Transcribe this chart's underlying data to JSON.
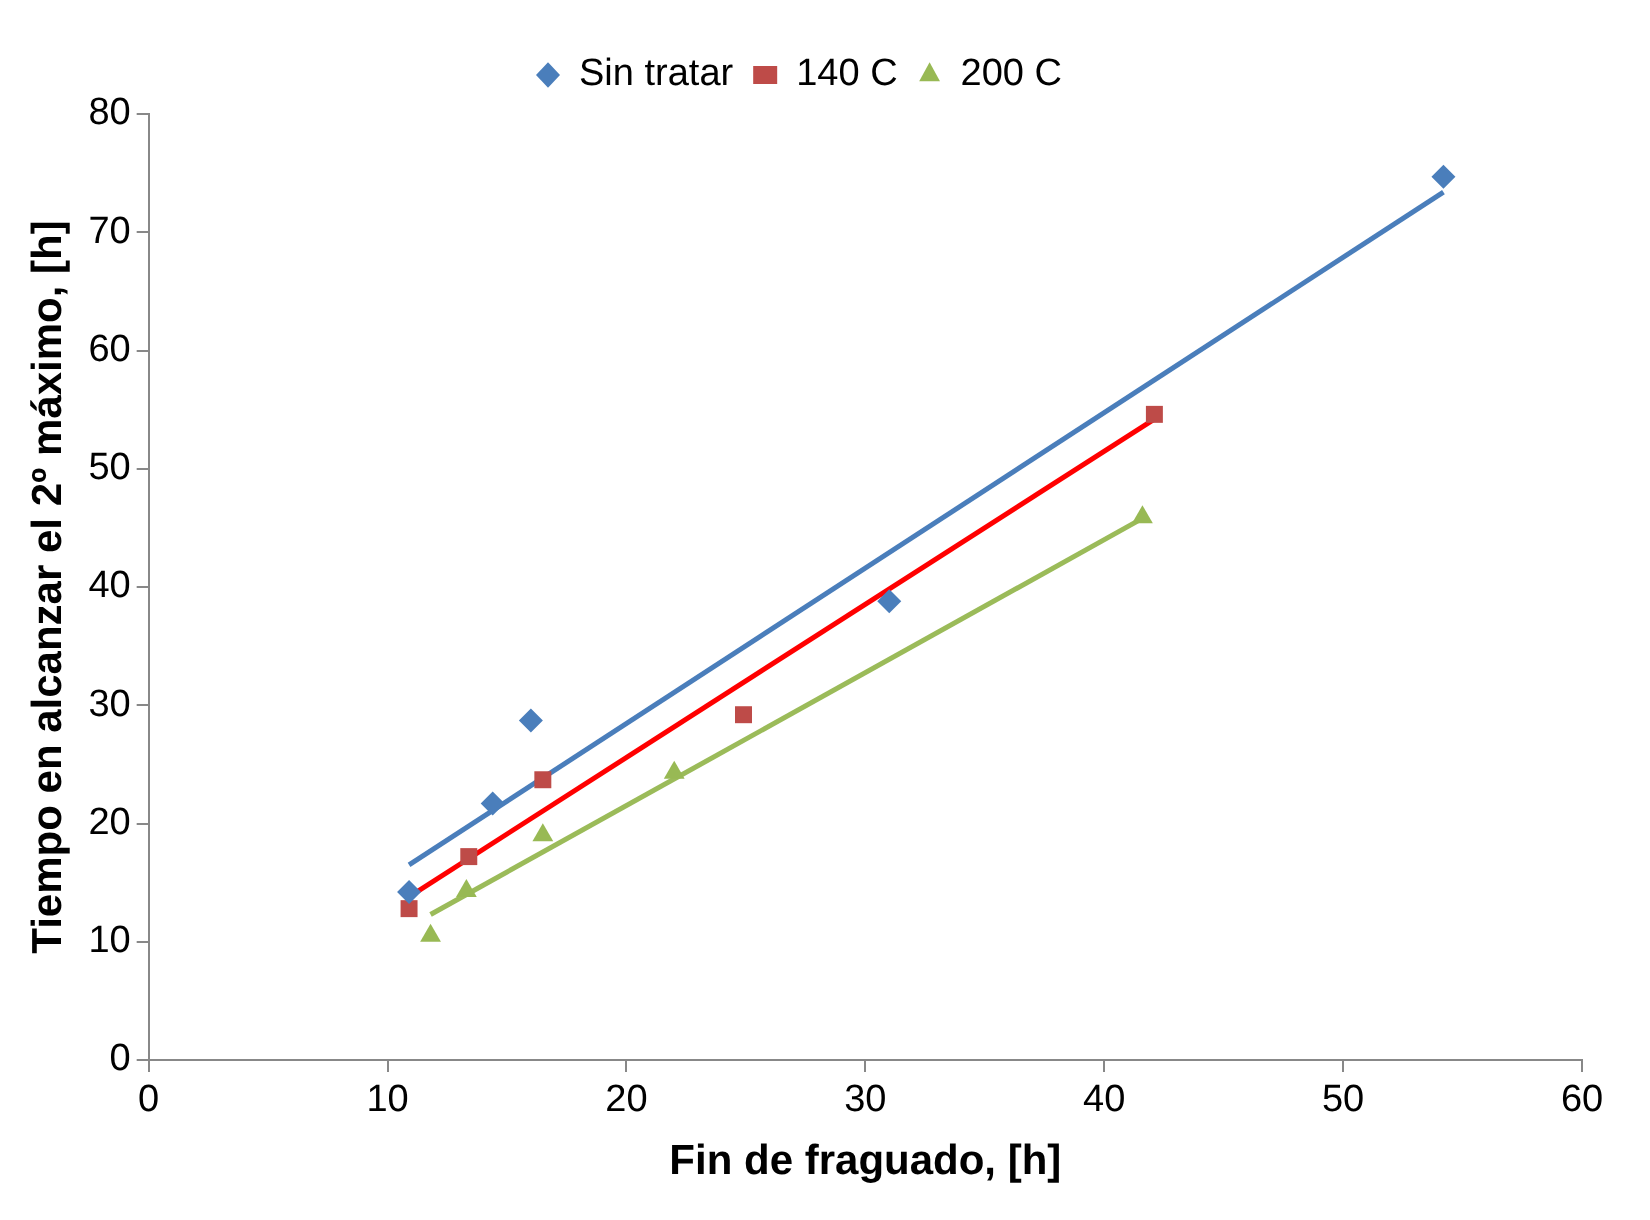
{
  "chart_data": {
    "type": "scatter",
    "xlabel": "Fin de fraguado, [h]",
    "ylabel": "Tiempo en alcanzar el 2º máximo, [h]",
    "xlim": [
      0,
      60
    ],
    "xticks": [
      0,
      10,
      20,
      30,
      40,
      50,
      60
    ],
    "ylim": [
      0,
      80
    ],
    "yticks": [
      0,
      10,
      20,
      30,
      40,
      50,
      60,
      70,
      80
    ],
    "grid": false,
    "legend": "top",
    "series": [
      {
        "name": "Sin tratar",
        "marker": "diamond",
        "color": "#4a7ebb",
        "x": [
          10.9,
          14.4,
          16.0,
          31.0,
          54.2
        ],
        "values": [
          14.2,
          21.7,
          28.7,
          38.8,
          74.7
        ]
      },
      {
        "name": "140 C",
        "marker": "square",
        "color": "#be4b48",
        "x": [
          10.9,
          13.4,
          16.5,
          24.9,
          42.1
        ],
        "values": [
          12.8,
          17.2,
          23.7,
          29.2,
          54.6
        ]
      },
      {
        "name": "200 C",
        "marker": "triangle",
        "color": "#98b954",
        "x": [
          11.8,
          13.3,
          16.5,
          22.0,
          41.6
        ],
        "values": [
          10.5,
          14.3,
          19.0,
          24.3,
          45.9
        ]
      },
      {
        "type": "line",
        "marker": "none",
        "color": "#4a7ebb",
        "x": [
          10.9,
          54.2
        ],
        "values": [
          16.5,
          73.4
        ]
      },
      {
        "type": "line",
        "marker": "none",
        "color": "#ff0000",
        "x": [
          10.9,
          42.1
        ],
        "values": [
          13.8,
          54.2
        ]
      },
      {
        "type": "line",
        "marker": "none",
        "color": "#9bbb59",
        "x": [
          11.8,
          41.6
        ],
        "values": [
          12.3,
          45.8
        ]
      }
    ]
  }
}
